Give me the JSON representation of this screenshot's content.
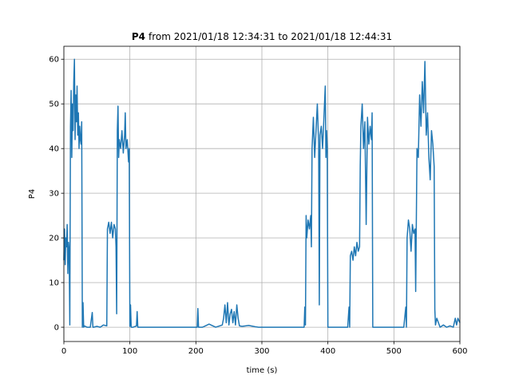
{
  "chart_data": {
    "type": "line",
    "title": {
      "bold": "P4",
      "text": "from 2021/01/18 12:34:31 to 2021/01/18 12:44:31"
    },
    "xlabel": "time (s)",
    "ylabel": "P4",
    "color": "#1f77b4",
    "grid": true,
    "xlim": [
      0,
      600
    ],
    "xticks": [
      0,
      100,
      200,
      300,
      400,
      500,
      600
    ],
    "ylim": [
      -3.2,
      62.9
    ],
    "yticks": [
      0,
      10,
      20,
      30,
      40,
      50,
      60
    ],
    "x": [
      0,
      1,
      2,
      3,
      4,
      5,
      6,
      7,
      8,
      9,
      10,
      11,
      12,
      13,
      14,
      15,
      16,
      17,
      18,
      19,
      20,
      21,
      22,
      23,
      24,
      25,
      26,
      27,
      28,
      29,
      30,
      31,
      35,
      40,
      43,
      44,
      45,
      50,
      55,
      60,
      65,
      66,
      68,
      70,
      72,
      74,
      76,
      78,
      79,
      80,
      81,
      82,
      83,
      84,
      86,
      88,
      90,
      92,
      93,
      94,
      96,
      98,
      99,
      100,
      101,
      102,
      105,
      110,
      111,
      112,
      120,
      150,
      200,
      202,
      203,
      204,
      210,
      220,
      230,
      240,
      242,
      244,
      246,
      248,
      250,
      252,
      254,
      256,
      258,
      260,
      262,
      264,
      266,
      270,
      280,
      290,
      295,
      300,
      330,
      360,
      364,
      365,
      366,
      367,
      368,
      370,
      372,
      374,
      375,
      376,
      378,
      380,
      382,
      384,
      386,
      387,
      388,
      390,
      392,
      394,
      396,
      397,
      398,
      399,
      400,
      410,
      420,
      430,
      432,
      433,
      434,
      436,
      438,
      440,
      442,
      444,
      446,
      448,
      449,
      450,
      452,
      454,
      456,
      458,
      460,
      462,
      464,
      466,
      467,
      468,
      470,
      490,
      510,
      515,
      518,
      519,
      520,
      522,
      524,
      526,
      528,
      530,
      532,
      533,
      535,
      537,
      539,
      541,
      543,
      545,
      547,
      549,
      551,
      553,
      555,
      557,
      559,
      561,
      562,
      563,
      565,
      570,
      575,
      580,
      585,
      590,
      593,
      595,
      597,
      600
    ],
    "values": [
      15,
      22,
      14,
      20,
      18,
      23,
      12,
      19,
      17,
      0.5,
      45,
      53,
      38,
      50,
      44,
      55,
      60,
      42,
      52,
      46,
      54,
      43,
      48,
      40,
      45,
      42,
      41,
      46,
      0,
      5.5,
      0,
      0.3,
      0,
      0,
      3.3,
      0,
      0,
      0.2,
      0,
      0.5,
      0.3,
      22,
      23.5,
      21,
      23.5,
      20,
      23,
      22,
      18,
      3,
      44,
      49.5,
      38,
      42,
      40,
      44,
      39,
      43,
      48,
      40,
      42,
      37,
      40,
      0.2,
      5,
      0,
      0,
      0.3,
      3.5,
      0,
      0,
      0,
      0,
      0,
      4.2,
      0,
      0,
      0.7,
      0,
      0.5,
      2,
      5,
      1,
      5.5,
      0.5,
      3,
      4,
      1,
      3.5,
      0.5,
      5,
      2,
      0.3,
      0.2,
      0.4,
      0.1,
      0,
      0,
      0,
      0,
      0,
      4.5,
      0.5,
      25,
      20,
      24,
      22,
      25,
      18,
      40,
      47,
      38,
      44,
      50,
      41,
      5,
      43,
      45,
      40,
      47,
      54,
      38,
      44,
      40,
      0,
      0,
      0,
      0,
      4.5,
      0,
      16,
      17,
      15,
      18,
      16,
      19,
      17,
      18,
      36,
      45,
      50,
      40,
      46,
      23,
      47,
      41,
      45,
      42,
      48,
      0,
      0,
      0,
      0,
      0,
      4.5,
      0,
      20,
      24,
      22,
      17,
      23,
      21,
      22,
      8,
      40,
      38,
      52,
      45,
      55,
      48,
      59.5,
      43,
      48,
      38,
      33,
      44,
      41,
      36,
      4,
      0.5,
      2,
      0,
      0.5,
      0,
      0.3,
      0,
      2,
      0.5,
      2,
      1
    ]
  }
}
